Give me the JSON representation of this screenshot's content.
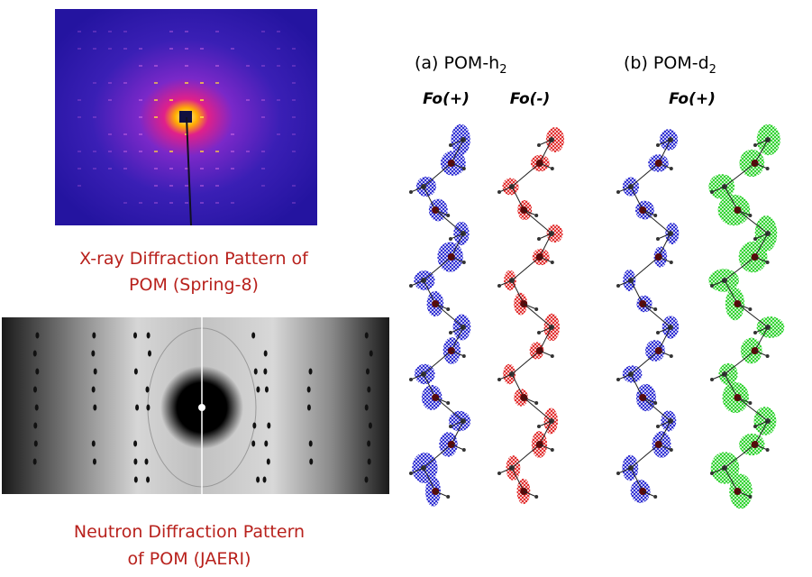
{
  "xray_caption": {
    "lines": [
      "X-ray Diffraction Pattern of",
      "POM (Spring-8)"
    ]
  },
  "neutron_caption": {
    "lines": [
      "Neutron Diffraction Pattern",
      "of POM (JAERI)"
    ]
  },
  "panel_a": {
    "label": "(a) POM-h",
    "subscript": "2",
    "maps": [
      "Fo(+)",
      "Fo(-)"
    ]
  },
  "panel_b": {
    "label": "(b) POM-d",
    "subscript": "2",
    "maps": [
      "Fo(+)"
    ]
  }
}
